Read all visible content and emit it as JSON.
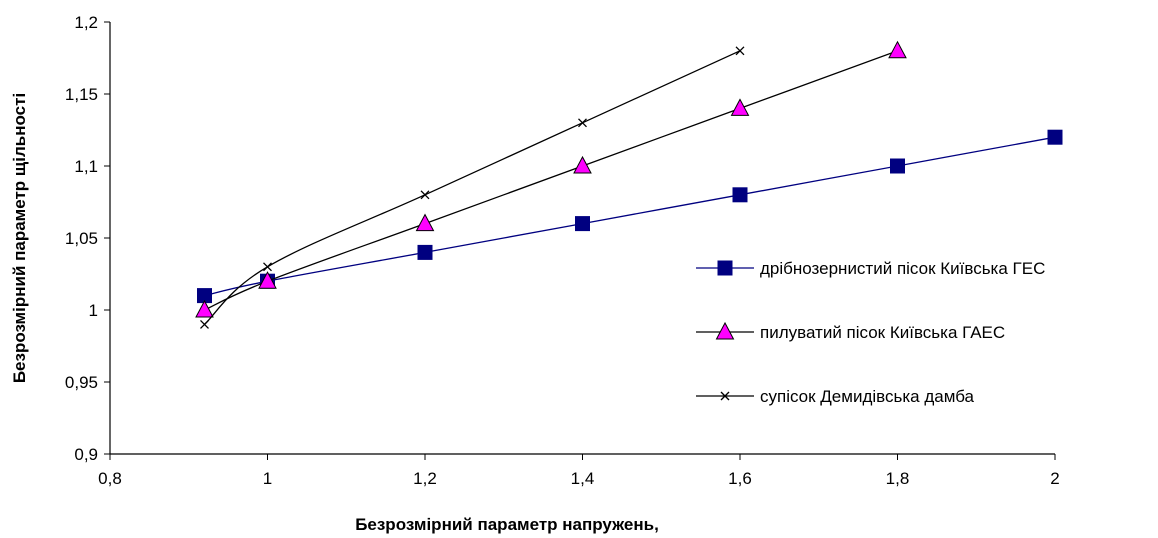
{
  "chart_data": {
    "type": "scatter",
    "title": "",
    "xlabel": "Безрозмірний параметр напружень,",
    "ylabel": "Безрозмірний параметр щільності",
    "xlim": [
      0.8,
      2.0
    ],
    "ylim": [
      0.9,
      1.2
    ],
    "x_ticks": [
      "0,8",
      "1",
      "1,2",
      "1,4",
      "1,6",
      "1,8",
      "2"
    ],
    "y_ticks": [
      "0,9",
      "0,95",
      "1",
      "1,05",
      "1,1",
      "1,15",
      "1,2"
    ],
    "grid": false,
    "legend_position": "right",
    "series": [
      {
        "name": "дрібнозернистий пісок Київська ГЕС",
        "marker": "square",
        "color": "#000080",
        "x": [
          0.92,
          1.0,
          1.2,
          1.4,
          1.6,
          1.8,
          2.0
        ],
        "y": [
          1.01,
          1.02,
          1.04,
          1.06,
          1.08,
          1.1,
          1.12
        ]
      },
      {
        "name": "пилуватий пісок Київська ГАЕС",
        "marker": "triangle",
        "color": "#ff00ff",
        "x": [
          0.92,
          1.0,
          1.2,
          1.4,
          1.6,
          1.8
        ],
        "y": [
          1.0,
          1.02,
          1.06,
          1.1,
          1.14,
          1.18
        ]
      },
      {
        "name": "супісок Демидівська дамба",
        "marker": "x",
        "color": "#000000",
        "x": [
          0.92,
          1.0,
          1.2,
          1.4,
          1.6
        ],
        "y": [
          0.99,
          1.03,
          1.08,
          1.13,
          1.18
        ]
      }
    ]
  }
}
